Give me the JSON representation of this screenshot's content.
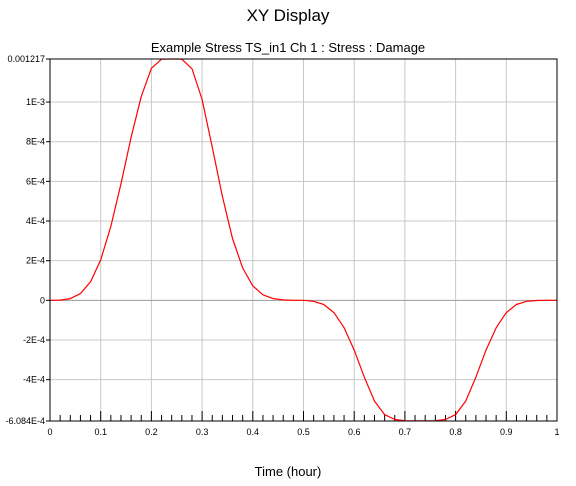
{
  "window": {
    "title": "XY Display"
  },
  "chart_data": {
    "type": "line",
    "title": "Example Stress TS_in1  Ch 1 : Stress : Damage",
    "xlabel": "Time (hour)",
    "ylabel": "",
    "xlim": [
      0,
      1
    ],
    "ylim": [
      -0.0006084,
      0.001217
    ],
    "grid": true,
    "x_ticks": [
      0,
      0.1,
      0.2,
      0.3,
      0.4,
      0.5,
      0.6,
      0.7,
      0.8,
      0.9,
      1
    ],
    "x_tick_labels": [
      "0",
      "0.1",
      "0.2",
      "0.3",
      "0.4",
      "0.5",
      "0.6",
      "0.7",
      "0.8",
      "0.9",
      "1"
    ],
    "y_ticks": [
      -0.0006084,
      -0.0004,
      -0.0002,
      0,
      0.0002,
      0.0004,
      0.0006,
      0.0008,
      0.001,
      0.001217
    ],
    "y_tick_labels": [
      "-6.084E-4",
      "-4E-4",
      "-2E-4",
      "0",
      "2E-4",
      "4E-4",
      "6E-4",
      "8E-4",
      "1E-3",
      "0.001217"
    ],
    "series": [
      {
        "color": "#ff0000",
        "x": [
          0,
          0.02,
          0.04,
          0.06,
          0.08,
          0.1,
          0.12,
          0.14,
          0.16,
          0.18,
          0.2,
          0.22,
          0.24,
          0.25,
          0.26,
          0.28,
          0.3,
          0.32,
          0.34,
          0.36,
          0.38,
          0.4,
          0.42,
          0.44,
          0.46,
          0.48,
          0.5,
          0.52,
          0.54,
          0.56,
          0.58,
          0.6,
          0.62,
          0.64,
          0.66,
          0.68,
          0.7,
          0.72,
          0.74,
          0.75,
          0.76,
          0.78,
          0.8,
          0.82,
          0.84,
          0.86,
          0.88,
          0.9,
          0.92,
          0.94,
          0.96,
          0.98,
          1
        ],
        "y": [
          0,
          1e-06,
          9e-06,
          3.4e-05,
          9.4e-05,
          0.000204,
          0.000372,
          0.000588,
          0.000822,
          0.001029,
          0.00117,
          0.001216,
          0.001217,
          0.001217,
          0.001216,
          0.001168,
          0.001013,
          0.000774,
          0.000524,
          0.000312,
          0.000163,
          7.3e-05,
          2.8e-05,
          9e-06,
          2e-06,
          0,
          0,
          -5e-06,
          -2.1e-05,
          -6.2e-05,
          -0.000138,
          -0.000251,
          -0.000387,
          -0.000508,
          -0.000576,
          -0.000601,
          -0.000607,
          -0.000608,
          -0.000608,
          -0.000608,
          -0.000607,
          -0.000601,
          -0.000576,
          -0.000508,
          -0.000387,
          -0.000251,
          -0.000138,
          -6.2e-05,
          -2.1e-05,
          -5e-06,
          -1e-06,
          0,
          0
        ]
      }
    ]
  }
}
